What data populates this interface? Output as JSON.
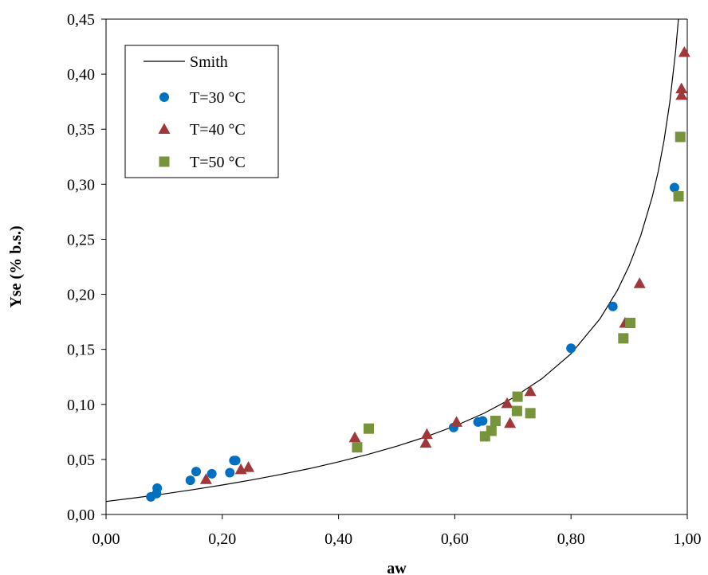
{
  "chart_data": {
    "type": "scatter",
    "title": "",
    "xlabel": "aw",
    "ylabel": "Yse (% b.s.)",
    "xlim": [
      0,
      1
    ],
    "ylim": [
      0,
      0.45
    ],
    "grid": false,
    "legend_position": "top-left",
    "x_ticks": [
      "0,00",
      "0,20",
      "0,40",
      "0,60",
      "0,80",
      "1,00"
    ],
    "y_ticks": [
      "0,00",
      "0,05",
      "0,10",
      "0,15",
      "0,20",
      "0,25",
      "0,30",
      "0,35",
      "0,40",
      "0,45"
    ],
    "model_curve": {
      "name": "Smith",
      "color": "#000000",
      "points": [
        [
          0.0,
          0.0118
        ],
        [
          0.05,
          0.0151
        ],
        [
          0.1,
          0.0187
        ],
        [
          0.15,
          0.0226
        ],
        [
          0.2,
          0.0268
        ],
        [
          0.25,
          0.0313
        ],
        [
          0.3,
          0.0363
        ],
        [
          0.35,
          0.0417
        ],
        [
          0.4,
          0.0478
        ],
        [
          0.45,
          0.0545
        ],
        [
          0.5,
          0.062
        ],
        [
          0.55,
          0.0705
        ],
        [
          0.6,
          0.0803
        ],
        [
          0.65,
          0.0919
        ],
        [
          0.7,
          0.1059
        ],
        [
          0.75,
          0.1234
        ],
        [
          0.8,
          0.146
        ],
        [
          0.85,
          0.1779
        ],
        [
          0.88,
          0.2038
        ],
        [
          0.9,
          0.2259
        ],
        [
          0.92,
          0.2534
        ],
        [
          0.94,
          0.2891
        ],
        [
          0.95,
          0.3114
        ],
        [
          0.96,
          0.3395
        ],
        [
          0.97,
          0.3745
        ],
        [
          0.98,
          0.421
        ],
        [
          0.985,
          0.451
        ],
        [
          0.988,
          0.476
        ]
      ]
    },
    "series": [
      {
        "name": "T=30 °C",
        "marker": "circle",
        "color": "#0070C0",
        "points": [
          [
            0.077,
            0.016
          ],
          [
            0.087,
            0.019
          ],
          [
            0.088,
            0.024
          ],
          [
            0.145,
            0.031
          ],
          [
            0.155,
            0.039
          ],
          [
            0.182,
            0.037
          ],
          [
            0.213,
            0.038
          ],
          [
            0.22,
            0.049
          ],
          [
            0.223,
            0.049
          ],
          [
            0.598,
            0.079
          ],
          [
            0.64,
            0.084
          ],
          [
            0.648,
            0.085
          ],
          [
            0.8,
            0.151
          ],
          [
            0.872,
            0.189
          ],
          [
            0.978,
            0.297
          ]
        ]
      },
      {
        "name": "T=40 °C",
        "marker": "triangle",
        "color": "#A0383A",
        "points": [
          [
            0.172,
            0.032
          ],
          [
            0.232,
            0.041
          ],
          [
            0.245,
            0.043
          ],
          [
            0.428,
            0.07
          ],
          [
            0.55,
            0.065
          ],
          [
            0.552,
            0.073
          ],
          [
            0.603,
            0.084
          ],
          [
            0.69,
            0.101
          ],
          [
            0.695,
            0.083
          ],
          [
            0.73,
            0.112
          ],
          [
            0.893,
            0.174
          ],
          [
            0.918,
            0.21
          ],
          [
            0.99,
            0.381
          ],
          [
            0.99,
            0.387
          ],
          [
            0.995,
            0.42
          ]
        ]
      },
      {
        "name": "T=50 °C",
        "marker": "square",
        "color": "#77933C",
        "points": [
          [
            0.432,
            0.061
          ],
          [
            0.452,
            0.078
          ],
          [
            0.652,
            0.071
          ],
          [
            0.663,
            0.076
          ],
          [
            0.67,
            0.085
          ],
          [
            0.707,
            0.094
          ],
          [
            0.708,
            0.107
          ],
          [
            0.73,
            0.092
          ],
          [
            0.89,
            0.16
          ],
          [
            0.902,
            0.174
          ],
          [
            0.985,
            0.289
          ],
          [
            0.988,
            0.343
          ]
        ]
      }
    ]
  }
}
